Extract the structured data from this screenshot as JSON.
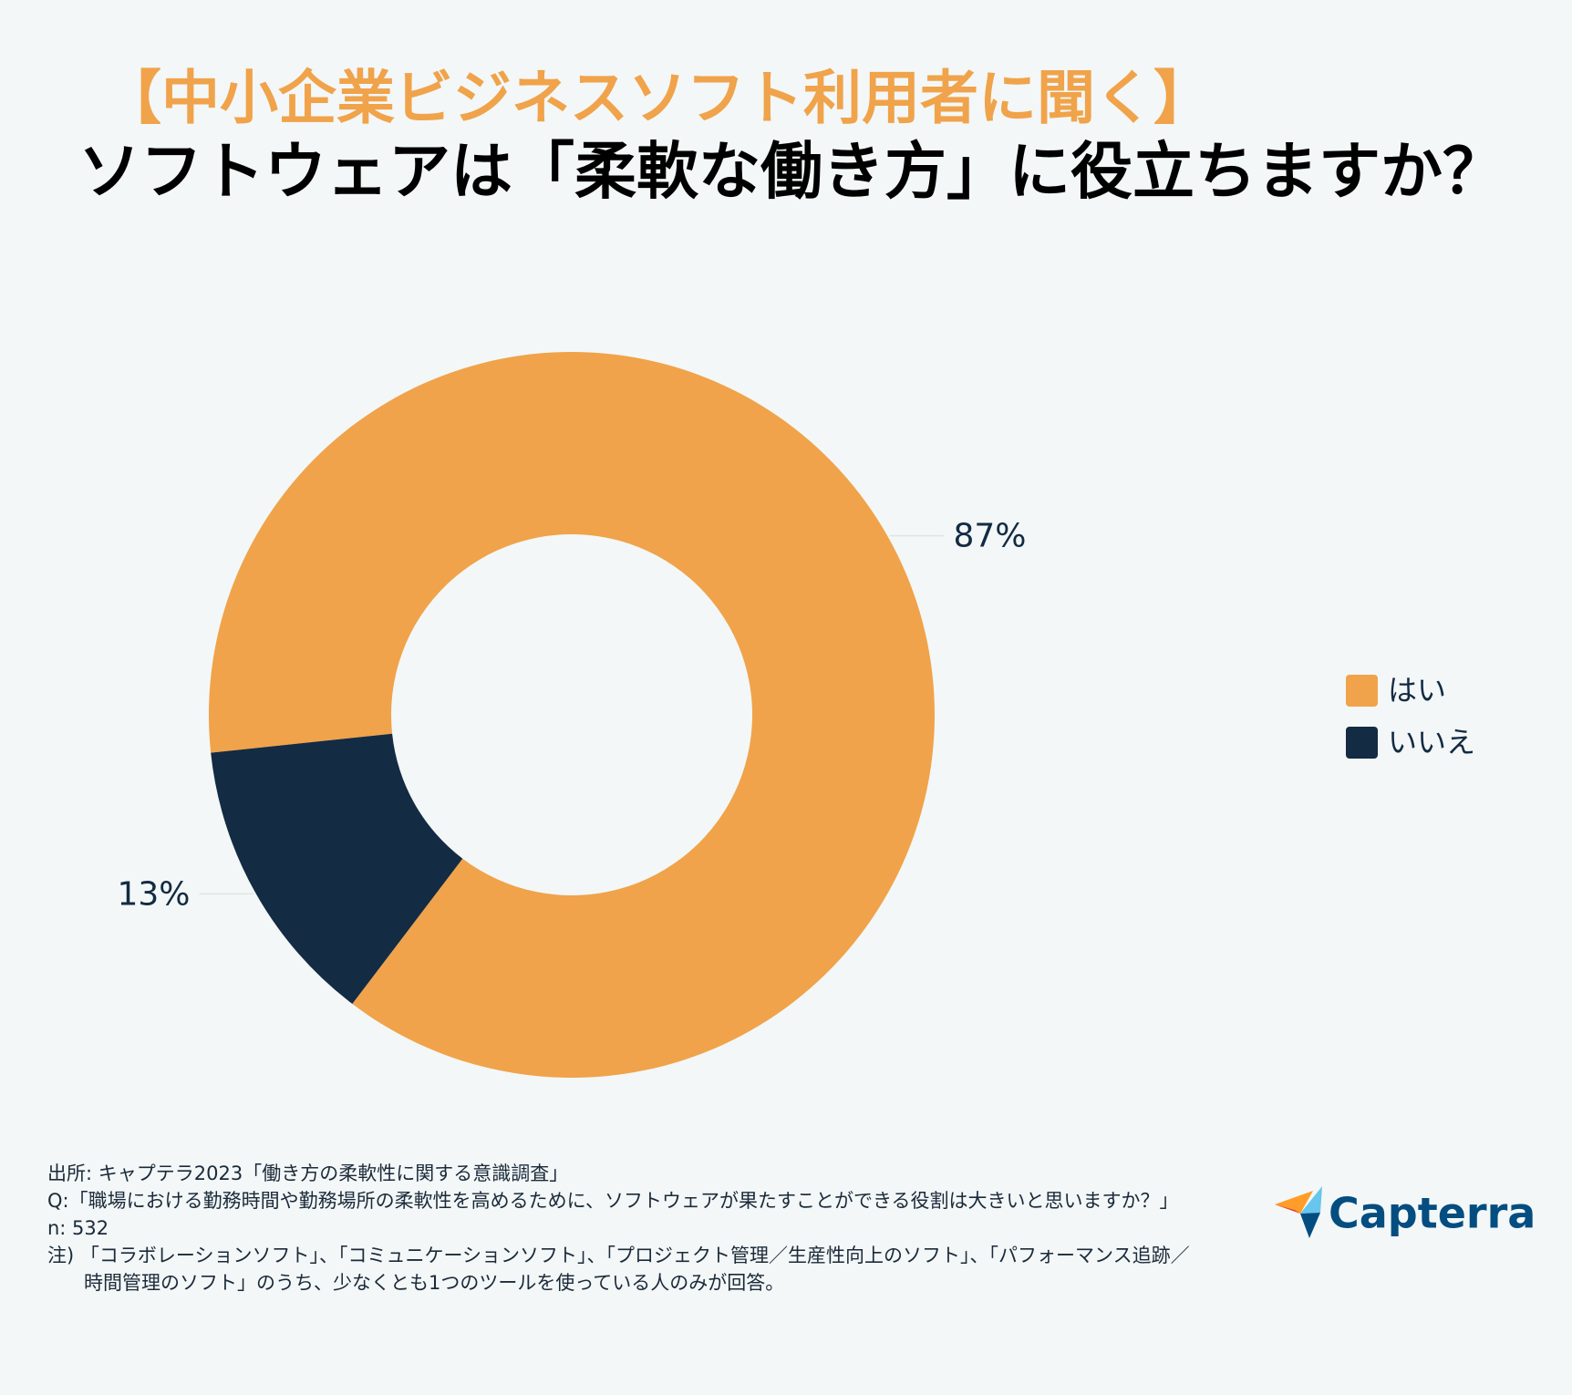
{
  "chart_data": {
    "type": "pie",
    "hole": true,
    "title": "【中小企業ビジネスソフト利用者に聞く】",
    "subtitle": "ソフトウェアは「柔軟な働き方」に役立ちますか？",
    "categories": [
      "はい",
      "いいえ"
    ],
    "values": [
      87,
      13
    ],
    "value_labels": [
      "87%",
      "13%"
    ],
    "colors": [
      "#F0A34A",
      "#132B43"
    ],
    "legend": "right"
  },
  "footer": {
    "notes": [
      "出所: キャプテラ2023「働き方の柔軟性に関する意識調査」",
      "Q:「職場における勤務時間や勤務場所の柔軟性を高めるために、ソフトウェアが果たすことができる役割は大きいと思いますか？」",
      "n: 532",
      "注) 「コラボレーションソフト」、「コミュニケーションソフト」、「プロジェクト管理／生産性向上のソフト」、「パフォーマンス追跡／時間管理のソフト」のうち、少なくとも1つのツールを使っている人のみが回答。"
    ],
    "logo": "Capterra"
  }
}
